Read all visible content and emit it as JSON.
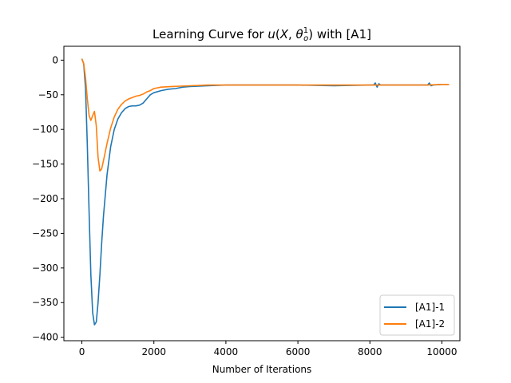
{
  "chart_data": {
    "type": "line",
    "title_prefix": "Learning Curve for ",
    "title_math_u": "u",
    "title_math_open": "(",
    "title_math_X": "X",
    "title_math_comma": ", ",
    "title_math_theta": "θ",
    "title_math_sup": "1",
    "title_math_sub": "o",
    "title_math_close": ")",
    "title_suffix": " with [A1]",
    "xlabel": "Number of Iterations",
    "ylabel": "",
    "xlim": [
      -500,
      10500
    ],
    "ylim": [
      -405,
      20
    ],
    "xticks": [
      0,
      2000,
      4000,
      6000,
      8000,
      10000
    ],
    "xtick_labels": [
      "0",
      "2000",
      "4000",
      "6000",
      "8000",
      "10000"
    ],
    "yticks": [
      0,
      -50,
      -100,
      -150,
      -200,
      -250,
      -300,
      -350,
      -400
    ],
    "ytick_labels": [
      "0",
      "−50",
      "−100",
      "−150",
      "−200",
      "−250",
      "−300",
      "−350",
      "−400"
    ],
    "grid": false,
    "legend_position": "lower-right",
    "series": [
      {
        "name": "[A1]-1",
        "color": "#1f77b4",
        "points": [
          [
            0,
            2
          ],
          [
            50,
            -5
          ],
          [
            100,
            -40
          ],
          [
            150,
            -120
          ],
          [
            200,
            -220
          ],
          [
            250,
            -310
          ],
          [
            300,
            -365
          ],
          [
            350,
            -382
          ],
          [
            400,
            -378
          ],
          [
            450,
            -350
          ],
          [
            500,
            -310
          ],
          [
            550,
            -265
          ],
          [
            600,
            -225
          ],
          [
            700,
            -165
          ],
          [
            800,
            -125
          ],
          [
            900,
            -100
          ],
          [
            1000,
            -85
          ],
          [
            1100,
            -76
          ],
          [
            1200,
            -70
          ],
          [
            1300,
            -67
          ],
          [
            1400,
            -66
          ],
          [
            1500,
            -66
          ],
          [
            1600,
            -65
          ],
          [
            1700,
            -62
          ],
          [
            1800,
            -56
          ],
          [
            1900,
            -50
          ],
          [
            2000,
            -47
          ],
          [
            2200,
            -44
          ],
          [
            2400,
            -42
          ],
          [
            2600,
            -41
          ],
          [
            2800,
            -39
          ],
          [
            3000,
            -38
          ],
          [
            3500,
            -37
          ],
          [
            4000,
            -36
          ],
          [
            4500,
            -36
          ],
          [
            5000,
            -36
          ],
          [
            6000,
            -36
          ],
          [
            7000,
            -37
          ],
          [
            8000,
            -36
          ],
          [
            8100,
            -36
          ],
          [
            8150,
            -33
          ],
          [
            8200,
            -39
          ],
          [
            8250,
            -34
          ],
          [
            8300,
            -36
          ],
          [
            9000,
            -36
          ],
          [
            9600,
            -36
          ],
          [
            9650,
            -33
          ],
          [
            9700,
            -37
          ],
          [
            9750,
            -36
          ],
          [
            10000,
            -35
          ],
          [
            10200,
            -35
          ]
        ]
      },
      {
        "name": "[A1]-2",
        "color": "#ff7f0e",
        "points": [
          [
            0,
            2
          ],
          [
            50,
            -5
          ],
          [
            100,
            -25
          ],
          [
            150,
            -55
          ],
          [
            200,
            -80
          ],
          [
            250,
            -87
          ],
          [
            300,
            -80
          ],
          [
            350,
            -74
          ],
          [
            400,
            -95
          ],
          [
            450,
            -140
          ],
          [
            500,
            -160
          ],
          [
            550,
            -157
          ],
          [
            600,
            -145
          ],
          [
            700,
            -120
          ],
          [
            800,
            -98
          ],
          [
            900,
            -82
          ],
          [
            1000,
            -71
          ],
          [
            1100,
            -64
          ],
          [
            1200,
            -59
          ],
          [
            1300,
            -56
          ],
          [
            1400,
            -54
          ],
          [
            1500,
            -52
          ],
          [
            1600,
            -51
          ],
          [
            1700,
            -49
          ],
          [
            1800,
            -46
          ],
          [
            1900,
            -44
          ],
          [
            2000,
            -41
          ],
          [
            2200,
            -39
          ],
          [
            2500,
            -38
          ],
          [
            3000,
            -37
          ],
          [
            3500,
            -36
          ],
          [
            4000,
            -36
          ],
          [
            4500,
            -36
          ],
          [
            5000,
            -36
          ],
          [
            6000,
            -36
          ],
          [
            7000,
            -36
          ],
          [
            8000,
            -36
          ],
          [
            8200,
            -36
          ],
          [
            8500,
            -36
          ],
          [
            9000,
            -36
          ],
          [
            9600,
            -36
          ],
          [
            10000,
            -35
          ],
          [
            10200,
            -35
          ]
        ]
      }
    ]
  }
}
